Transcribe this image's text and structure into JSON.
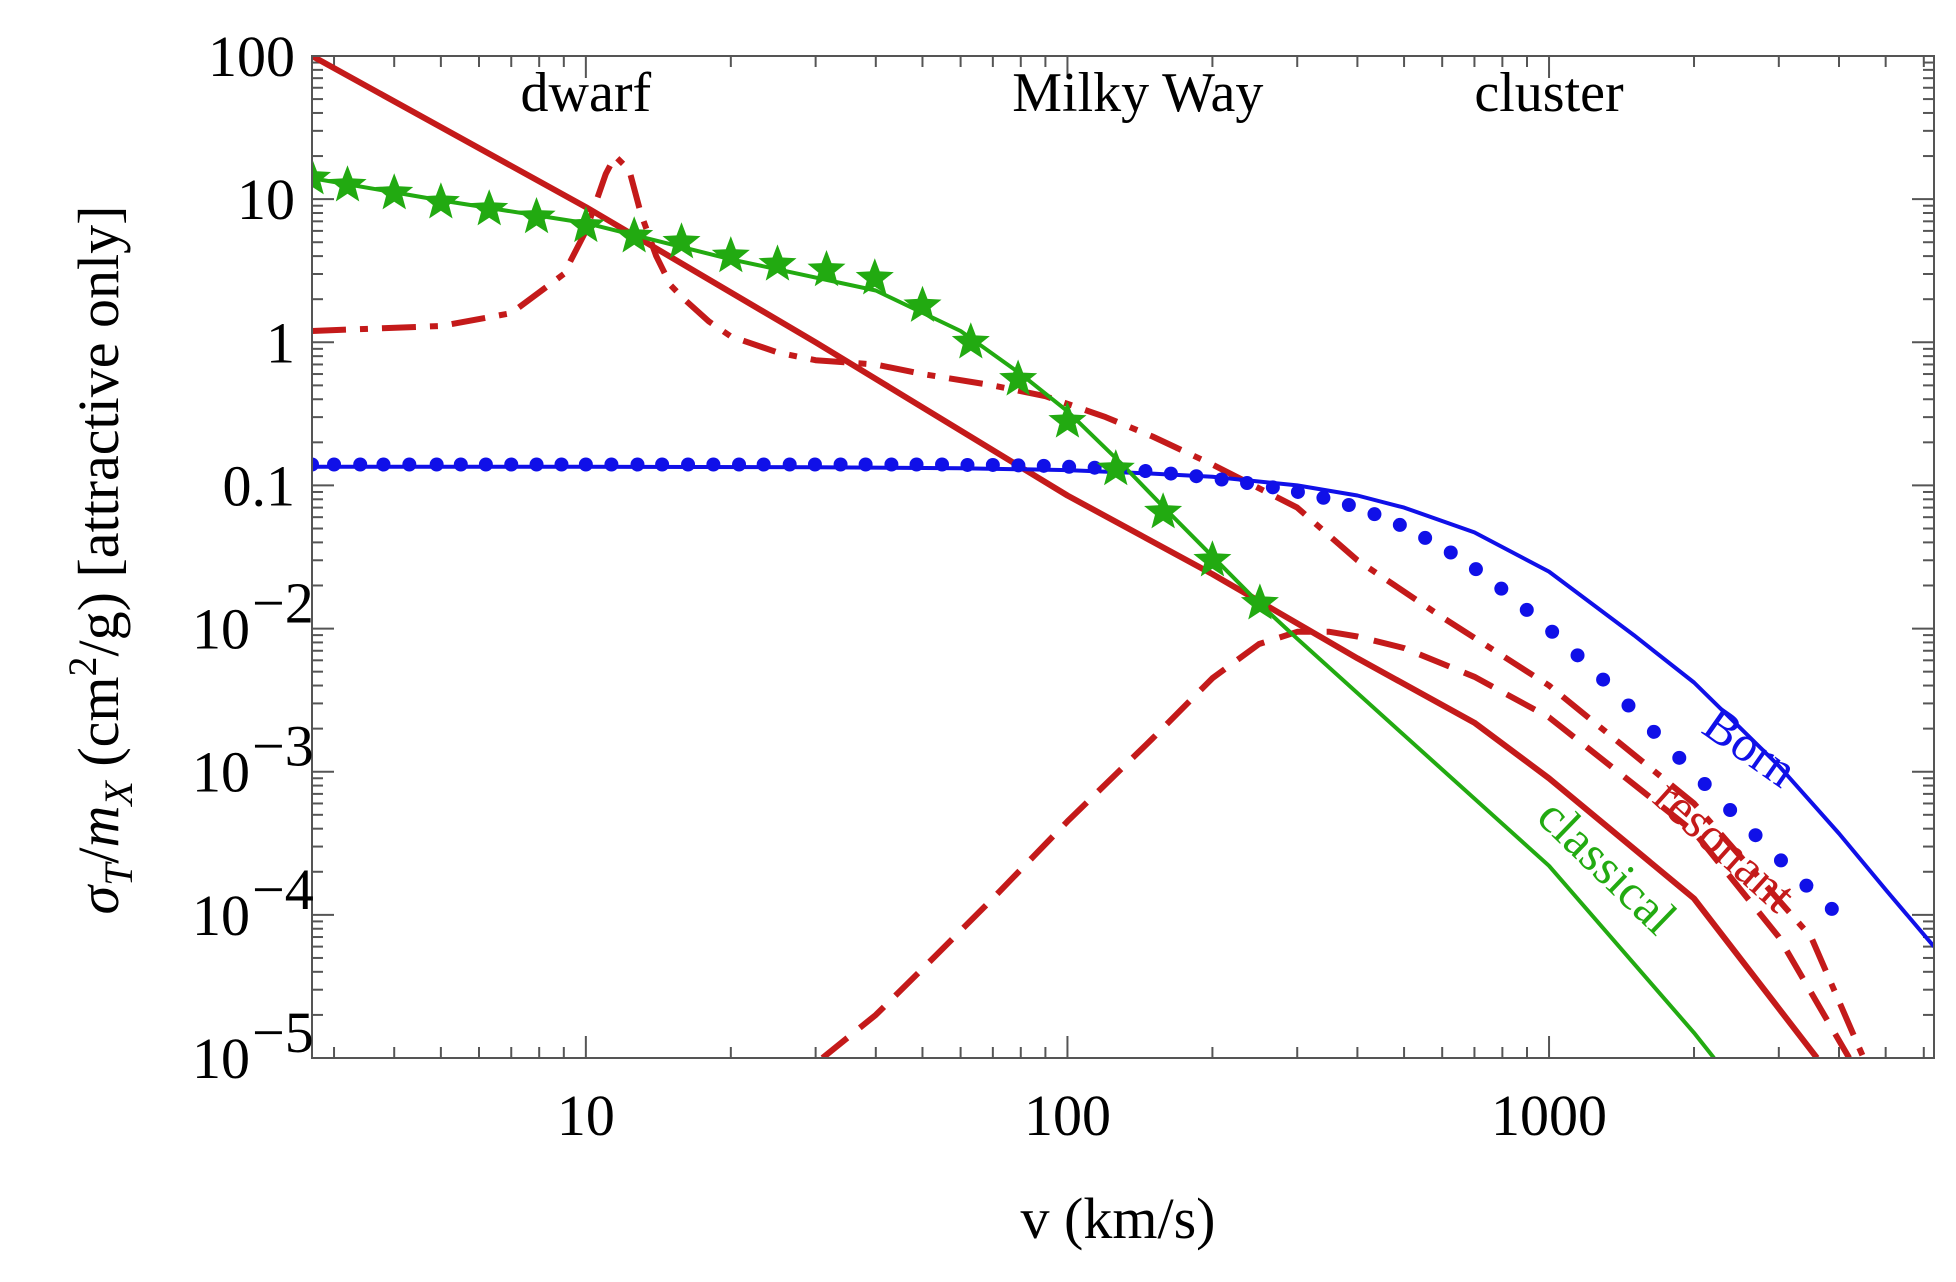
{
  "chart_data": {
    "type": "line",
    "xlabel": "v (km/s)",
    "ylabel": {
      "prefix": "σ",
      "sub1": "T",
      "slash": "/",
      "m": "m",
      "sub2": "X",
      "units_open": " (cm",
      "sup": "2",
      "units_close": "/g) [attractive only]"
    },
    "xscale": "log",
    "yscale": "log",
    "xlim": [
      2.7,
      6300
    ],
    "ylim": [
      1e-05,
      100
    ],
    "x_ticks": [
      {
        "value": 10,
        "label": "10"
      },
      {
        "value": 100,
        "label": "100"
      },
      {
        "value": 1000,
        "label": "1000"
      }
    ],
    "y_ticks": [
      {
        "value": 100,
        "label": "100"
      },
      {
        "value": 10,
        "label": "10"
      },
      {
        "value": 1,
        "label": "1"
      },
      {
        "value": 0.1,
        "label": "0.1"
      },
      {
        "value": 0.01,
        "base": "10",
        "exp": "−2"
      },
      {
        "value": 0.001,
        "base": "10",
        "exp": "−3"
      },
      {
        "value": 0.0001,
        "base": "10",
        "exp": "−4"
      },
      {
        "value": 1e-05,
        "base": "10",
        "exp": "−5"
      }
    ],
    "annotations": {
      "regions": [
        {
          "text": "dwarf",
          "x": 10,
          "y": 55
        },
        {
          "text": "Milky Way",
          "x": 140,
          "y": 55
        },
        {
          "text": "cluster",
          "x": 1000,
          "y": 55
        }
      ],
      "curve_labels": [
        {
          "text": "Born",
          "x": 2500,
          "y": 0.0012,
          "angle": 35,
          "color": "#1010e8"
        },
        {
          "text": "resonant",
          "x": 2200,
          "y": 0.00025,
          "angle": 42,
          "color": "#c41a1a"
        },
        {
          "text": "classical",
          "x": 1250,
          "y": 0.00018,
          "angle": 44,
          "color": "#22aa11"
        }
      ]
    },
    "series": [
      {
        "style": "solid-thick",
        "color": "#c41a1a",
        "x": [
          2.7,
          10,
          30,
          100,
          200,
          400,
          700,
          1000,
          2000,
          3600
        ],
        "y": [
          100,
          8.8,
          1.0,
          0.085,
          0.024,
          0.0062,
          0.0022,
          0.0009,
          0.00013,
          1e-05
        ]
      },
      {
        "style": "dashdot",
        "color": "#c41a1a",
        "x": [
          2.7,
          5,
          7,
          9,
          10,
          11,
          11.5,
          12.3,
          13,
          14,
          15,
          16,
          18,
          20,
          25,
          30,
          40,
          50,
          70,
          90,
          120,
          150,
          200,
          300,
          400,
          600,
          1000,
          2000,
          3500,
          4500
        ],
        "y": [
          1.2,
          1.3,
          1.6,
          3.0,
          6.0,
          15,
          20,
          16,
          8,
          4,
          2.5,
          2.0,
          1.4,
          1.1,
          0.85,
          0.75,
          0.7,
          0.6,
          0.5,
          0.42,
          0.3,
          0.22,
          0.14,
          0.07,
          0.03,
          0.012,
          0.004,
          0.0006,
          7e-05,
          1e-05
        ]
      },
      {
        "style": "dashed",
        "color": "#c41a1a",
        "x": [
          31,
          40,
          50,
          70,
          100,
          150,
          200,
          250,
          300,
          350,
          400,
          500,
          700,
          1000,
          2000,
          3000,
          4200
        ],
        "y": [
          1e-05,
          2e-05,
          4.2e-05,
          0.00013,
          0.00045,
          0.0017,
          0.0045,
          0.0078,
          0.0095,
          0.0095,
          0.0088,
          0.0073,
          0.0046,
          0.0024,
          0.00038,
          7e-05,
          1e-05
        ]
      },
      {
        "style": "solid-thin",
        "color": "#1010e8",
        "x": [
          2.7,
          10,
          30,
          60,
          100,
          150,
          200,
          300,
          400,
          500,
          700,
          1000,
          1500,
          2000,
          3000,
          4000,
          5000,
          6300
        ],
        "y": [
          0.135,
          0.135,
          0.134,
          0.132,
          0.128,
          0.121,
          0.115,
          0.1,
          0.085,
          0.07,
          0.047,
          0.025,
          0.009,
          0.0042,
          0.0011,
          0.00037,
          0.00015,
          6e-05
        ]
      },
      {
        "style": "solid-thin",
        "color": "#22aa11",
        "x": [
          2.7,
          5,
          10,
          20,
          40,
          60,
          80,
          100,
          130,
          160,
          200,
          250,
          300,
          500,
          1000,
          2000,
          2200
        ],
        "y": [
          14,
          9.8,
          6.8,
          3.8,
          2.3,
          1.2,
          0.6,
          0.33,
          0.14,
          0.068,
          0.032,
          0.015,
          0.0085,
          0.0018,
          0.00022,
          1.5e-05,
          1e-05
        ]
      },
      {
        "style": "markers-dots",
        "color": "#1010e8",
        "x": [
          2.7,
          3.0,
          3.4,
          3.8,
          4.3,
          4.9,
          5.5,
          6.2,
          7.0,
          7.9,
          8.9,
          10,
          11.3,
          12.8,
          14.4,
          16.3,
          18.4,
          20.8,
          23.4,
          26.5,
          29.9,
          33.8,
          38.1,
          43.1,
          48.6,
          54.9,
          62,
          70,
          79.1,
          89.3,
          100.8,
          113.9,
          128.6,
          145.2,
          164,
          185.2,
          209,
          236,
          267,
          301,
          340,
          384,
          434,
          490,
          553,
          625,
          705,
          796,
          899,
          1015,
          1146,
          1295,
          1462,
          1651,
          1864,
          2105,
          2377,
          2684,
          3031,
          3423,
          3865
        ],
        "y": [
          0.14,
          0.14,
          0.14,
          0.14,
          0.14,
          0.14,
          0.14,
          0.14,
          0.14,
          0.14,
          0.14,
          0.14,
          0.14,
          0.14,
          0.14,
          0.14,
          0.14,
          0.14,
          0.14,
          0.14,
          0.14,
          0.14,
          0.14,
          0.14,
          0.14,
          0.14,
          0.139,
          0.139,
          0.138,
          0.137,
          0.135,
          0.133,
          0.13,
          0.126,
          0.121,
          0.116,
          0.11,
          0.104,
          0.097,
          0.09,
          0.082,
          0.073,
          0.063,
          0.053,
          0.043,
          0.034,
          0.026,
          0.019,
          0.0135,
          0.0095,
          0.0065,
          0.0044,
          0.0029,
          0.0019,
          0.00125,
          0.00082,
          0.00054,
          0.00036,
          0.00024,
          0.00016,
          0.00011
        ]
      },
      {
        "style": "markers-stars",
        "color": "#22aa11",
        "x": [
          2.7,
          3.2,
          4,
          5,
          6.3,
          7.9,
          10,
          12.6,
          15.8,
          20,
          25,
          31.6,
          39.8,
          50,
          63,
          79,
          100,
          126,
          158,
          200,
          251
        ],
        "y": [
          14,
          12.5,
          11,
          9.5,
          8.5,
          7.5,
          6.5,
          5.5,
          5,
          4,
          3.5,
          3.2,
          2.8,
          1.8,
          1.0,
          0.55,
          0.28,
          0.13,
          0.065,
          0.03,
          0.015
        ]
      }
    ]
  }
}
